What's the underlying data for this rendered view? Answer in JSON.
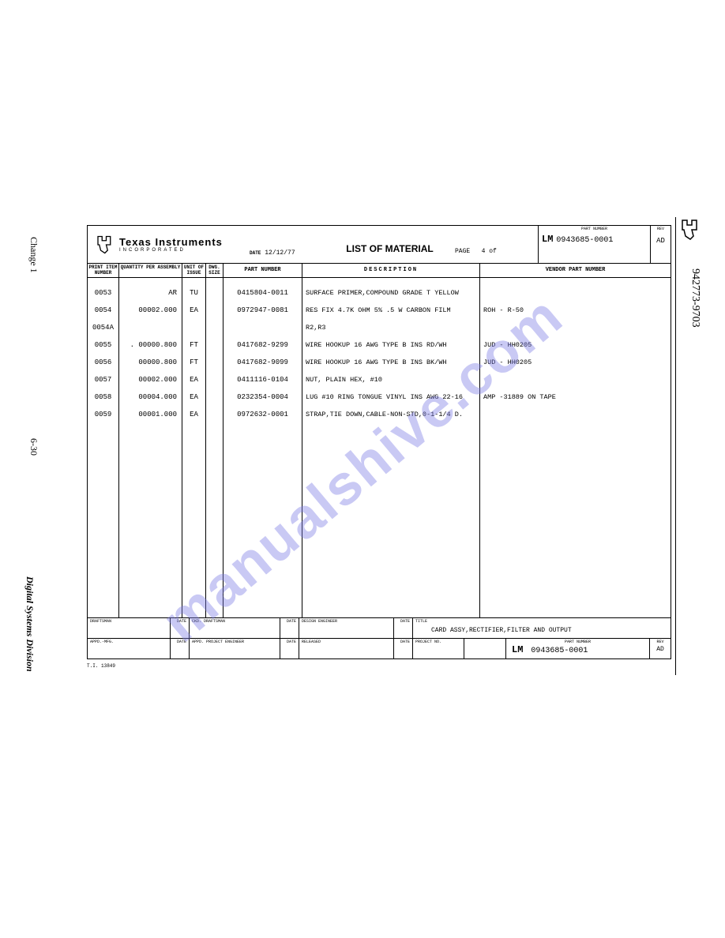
{
  "watermark": "manualshive.com",
  "sideLeft": {
    "change": "Change 1",
    "pageNum": "6-30",
    "division": "Digital Systems Division"
  },
  "sideRight": "942773-9703",
  "header": {
    "companyName": "Texas Instruments",
    "companySub": "INCORPORATED",
    "dateLabel": "DATE",
    "date": "12/12/77",
    "title": "LIST OF MATERIAL",
    "pageLabel": "PAGE",
    "pageVal": "4 of",
    "partNumLabel": "PART NUMBER",
    "lm": "LM",
    "partNum": "0943685-0001",
    "revLabel": "REV",
    "rev": "AD"
  },
  "columns": {
    "item": "PRINT ITEM NUMBER",
    "qty": "QUANTITY PER ASSEMBLY",
    "unit": "UNIT OF ISSUE",
    "dwg": "DWG. SIZE",
    "part": "PART NUMBER",
    "desc": "DESCRIPTION",
    "vendor": "VENDOR PART NUMBER"
  },
  "rows": [
    {
      "item": "0053",
      "qty": "AR",
      "unit": "TU",
      "part": "0415804-0011",
      "desc": "SURFACE PRIMER,COMPOUND GRADE T YELLOW",
      "vendor": ""
    },
    {
      "item": "0054",
      "qty": "00002.000",
      "unit": "EA",
      "part": "0972947-0081",
      "desc": "RES FIX 4.7K OHM 5% .5 W CARBON FILM",
      "vendor": "ROH   - R-50"
    },
    {
      "item": "0054A",
      "qty": "",
      "unit": "",
      "part": "",
      "desc": "R2,R3",
      "vendor": ""
    },
    {
      "item": "0055",
      "qty": ". 00000.800",
      "unit": "FT",
      "part": "0417682-9299",
      "desc": "WIRE HOOKUP 16 AWG TYPE B INS RD/WH",
      "vendor": "JUD   - HH0205"
    },
    {
      "item": "0056",
      "qty": "00000.800",
      "unit": "FT",
      "part": "0417682-9099",
      "desc": "WIRE HOOKUP 16 AWG TYPE B INS BK/WH",
      "vendor": "JUD   - HH0205"
    },
    {
      "item": "0057",
      "qty": "00002.000",
      "unit": "EA",
      "part": "0411116-0104",
      "desc": "NUT, PLAIN HEX, #10",
      "vendor": ""
    },
    {
      "item": "0058",
      "qty": "00004.000",
      "unit": "EA",
      "part": "0232354-0004",
      "desc": "LUG #10 RING TONGUE VINYL INS AWG 22-16",
      "vendor": "AMP   -31889 ON TAPE"
    },
    {
      "item": "0059",
      "qty": "00001.000",
      "unit": "EA",
      "part": "0972632-0001",
      "desc": "STRAP,TIE DOWN,CABLE-NON-STD,0-1-1/4 D.",
      "vendor": ""
    }
  ],
  "footer": {
    "draftsman": "DRAFTSMAN",
    "date": "DATE",
    "ckdDraftsman": "CKD. DRAFTSMAN",
    "designEng": "DESIGN ENGINEER",
    "titleLabel": "TITLE",
    "titleVal": "CARD ASSY,RECTIFIER,FILTER AND OUTPUT",
    "appdMfg": "APPD.-MFG.",
    "appdProjEng": "APPD. PROJECT ENGINEER",
    "released": "RELEASED",
    "projectNo": "PROJECT NO.",
    "partNumLabel": "PART NUMBER",
    "lm": "LM",
    "partNum": "0943685-0001",
    "revLabel": "REV",
    "rev": "AD"
  },
  "formNum": "T.I. 13849"
}
